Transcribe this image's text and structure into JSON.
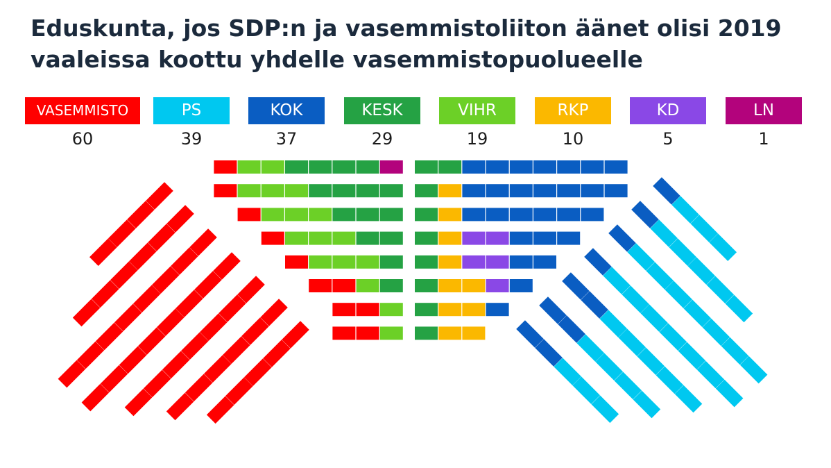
{
  "title": {
    "line1": "Eduskunta, jos SDP:n ja vasemmistoliiton äänet olisi 2019",
    "line2": "vaaleissa koottu yhdelle vasemmistopuolueelle"
  },
  "colors": {
    "VASEMMISTO": "#ff0000",
    "PS": "#00c8f0",
    "KOK": "#0a5dc2",
    "KESK": "#25a244",
    "VIHR": "#6cd027",
    "RKP": "#fbb800",
    "KD": "#8a48e6",
    "LN": "#b3037c"
  },
  "chart_data": {
    "type": "parliament",
    "total_seats": 200,
    "title": "Eduskunta, jos SDP:n ja vasemmistoliiton äänet olisi 2019 vaaleissa koottu yhdelle vasemmistopuolueelle",
    "series": [
      {
        "name": "VASEMMISTO",
        "value": 60
      },
      {
        "name": "PS",
        "value": 39
      },
      {
        "name": "KOK",
        "value": 37
      },
      {
        "name": "KESK",
        "value": 29
      },
      {
        "name": "VIHR",
        "value": 19
      },
      {
        "name": "RKP",
        "value": 10
      },
      {
        "name": "KD",
        "value": 5
      },
      {
        "name": "LN",
        "value": 1
      }
    ]
  }
}
